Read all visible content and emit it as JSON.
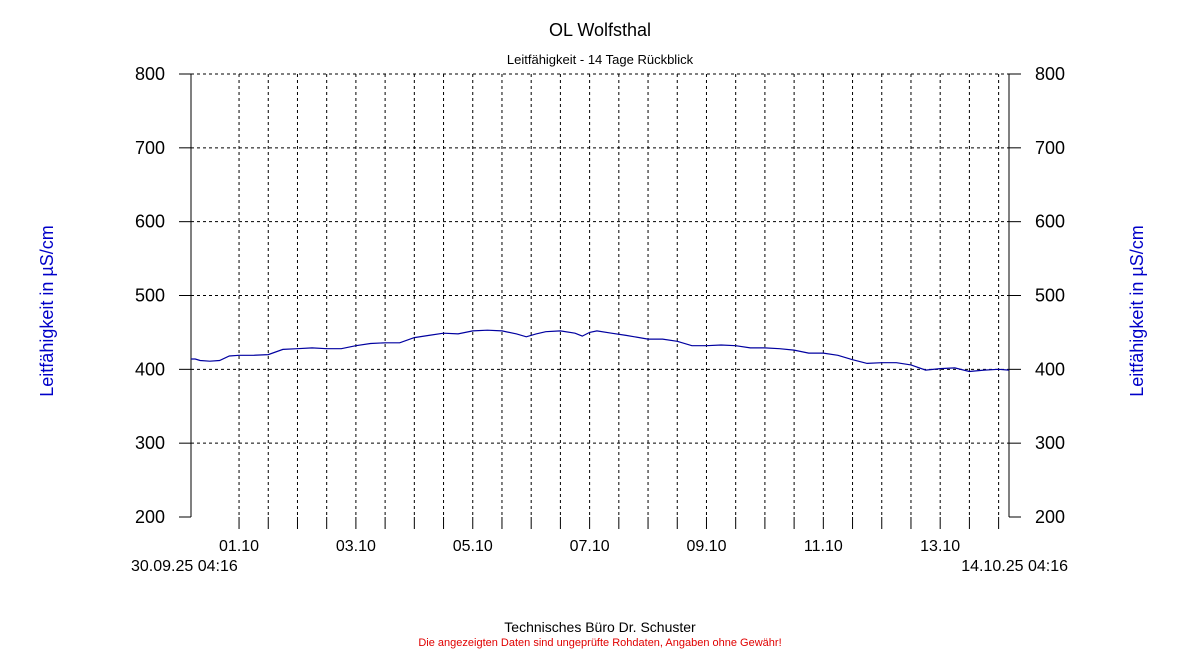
{
  "colors": {
    "series": "#0000a0",
    "axis_label": "#0000c8",
    "disclaimer": "#e00000",
    "grid": "#000000"
  },
  "chart_data": {
    "type": "line",
    "title": "OL Wolfsthal",
    "subtitle": "Leitfähigkeit - 14 Tage Rückblick",
    "ylabel_left": "Leitfähigkeit in µS/cm",
    "ylabel_right": "Leitfähigkeit in µS/cm",
    "ylim": [
      200,
      800
    ],
    "yticks": [
      200,
      300,
      400,
      500,
      600,
      700,
      800
    ],
    "xlim": [
      "2025-09-30T04:16",
      "2025-10-14T04:16"
    ],
    "x_range_start_label": "30.09.25 04:16",
    "x_range_end_label": "14.10.25 04:16",
    "xticks": [
      {
        "label": "01.10",
        "date": "2025-10-01T00:00"
      },
      {
        "label": "03.10",
        "date": "2025-10-03T00:00"
      },
      {
        "label": "05.10",
        "date": "2025-10-05T00:00"
      },
      {
        "label": "07.10",
        "date": "2025-10-07T00:00"
      },
      {
        "label": "09.10",
        "date": "2025-10-09T00:00"
      },
      {
        "label": "11.10",
        "date": "2025-10-11T00:00"
      },
      {
        "label": "13.10",
        "date": "2025-10-13T00:00"
      }
    ],
    "grid": true,
    "series": [
      {
        "color": "#0000a0",
        "points": [
          [
            "2025-09-30T04:16",
            414
          ],
          [
            "2025-09-30T06:00",
            414
          ],
          [
            "2025-09-30T08:00",
            412
          ],
          [
            "2025-09-30T12:00",
            411
          ],
          [
            "2025-09-30T16:00",
            412
          ],
          [
            "2025-09-30T20:00",
            418
          ],
          [
            "2025-10-01T00:00",
            419
          ],
          [
            "2025-10-01T06:00",
            419
          ],
          [
            "2025-10-01T12:00",
            420
          ],
          [
            "2025-10-01T18:00",
            427
          ],
          [
            "2025-10-02T00:00",
            428
          ],
          [
            "2025-10-02T06:00",
            429
          ],
          [
            "2025-10-02T12:00",
            428
          ],
          [
            "2025-10-02T18:00",
            428
          ],
          [
            "2025-10-03T00:00",
            432
          ],
          [
            "2025-10-03T06:00",
            435
          ],
          [
            "2025-10-03T12:00",
            436
          ],
          [
            "2025-10-03T18:00",
            436
          ],
          [
            "2025-10-04T00:00",
            443
          ],
          [
            "2025-10-04T06:00",
            446
          ],
          [
            "2025-10-04T12:00",
            449
          ],
          [
            "2025-10-04T18:00",
            448
          ],
          [
            "2025-10-05T00:00",
            452
          ],
          [
            "2025-10-05T06:00",
            453
          ],
          [
            "2025-10-05T12:00",
            452
          ],
          [
            "2025-10-05T18:00",
            448
          ],
          [
            "2025-10-05T22:00",
            444
          ],
          [
            "2025-10-06T02:00",
            448
          ],
          [
            "2025-10-06T06:00",
            451
          ],
          [
            "2025-10-06T12:00",
            452
          ],
          [
            "2025-10-06T18:00",
            449
          ],
          [
            "2025-10-06T21:00",
            445
          ],
          [
            "2025-10-07T00:00",
            450
          ],
          [
            "2025-10-07T03:00",
            452
          ],
          [
            "2025-10-07T09:00",
            449
          ],
          [
            "2025-10-07T15:00",
            446
          ],
          [
            "2025-10-08T00:00",
            441
          ],
          [
            "2025-10-08T06:00",
            441
          ],
          [
            "2025-10-08T12:00",
            438
          ],
          [
            "2025-10-08T18:00",
            432
          ],
          [
            "2025-10-09T00:00",
            432
          ],
          [
            "2025-10-09T06:00",
            433
          ],
          [
            "2025-10-09T12:00",
            432
          ],
          [
            "2025-10-09T18:00",
            429
          ],
          [
            "2025-10-10T00:00",
            429
          ],
          [
            "2025-10-10T06:00",
            428
          ],
          [
            "2025-10-10T12:00",
            426
          ],
          [
            "2025-10-10T18:00",
            422
          ],
          [
            "2025-10-11T00:00",
            422
          ],
          [
            "2025-10-11T06:00",
            419
          ],
          [
            "2025-10-11T12:00",
            413
          ],
          [
            "2025-10-11T18:00",
            408
          ],
          [
            "2025-10-12T00:00",
            409
          ],
          [
            "2025-10-12T06:00",
            409
          ],
          [
            "2025-10-12T12:00",
            406
          ],
          [
            "2025-10-12T18:00",
            399
          ],
          [
            "2025-10-13T00:00",
            401
          ],
          [
            "2025-10-13T06:00",
            402
          ],
          [
            "2025-10-13T12:00",
            397
          ],
          [
            "2025-10-13T18:00",
            399
          ],
          [
            "2025-10-14T00:00",
            400
          ],
          [
            "2025-10-14T04:16",
            399
          ]
        ]
      }
    ]
  },
  "footer": {
    "company": "Technisches Büro Dr. Schuster",
    "disclaimer": "Die angezeigten Daten sind ungeprüfte Rohdaten, Angaben ohne Gewähr!"
  }
}
